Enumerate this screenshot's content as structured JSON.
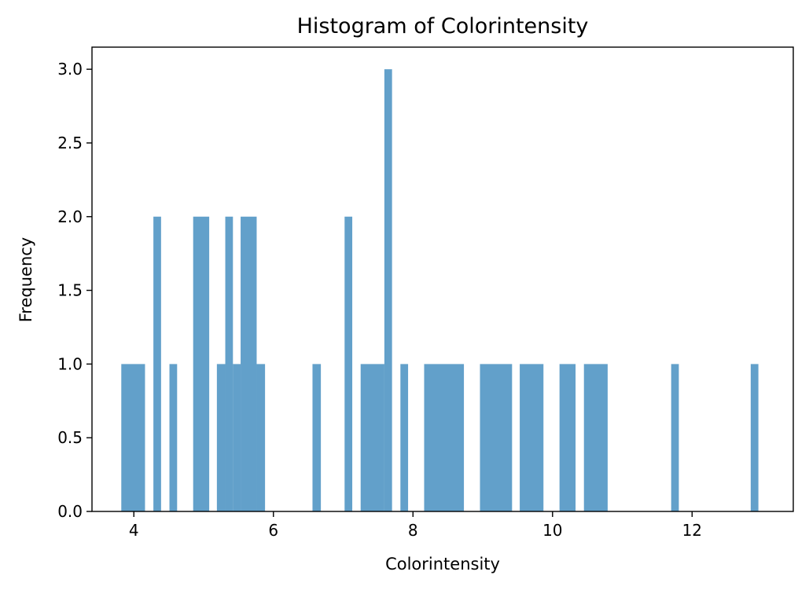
{
  "chart_data": {
    "type": "bar",
    "title": "Histogram of Colorintensity",
    "xlabel": "Colorintensity",
    "ylabel": "Frequency",
    "xlim": [
      3.4,
      13.45
    ],
    "ylim": [
      0,
      3.15
    ],
    "xticks": [
      4,
      6,
      8,
      10,
      12
    ],
    "xtick_labels": [
      "4",
      "6",
      "8",
      "10",
      "12"
    ],
    "yticks": [
      0,
      0.5,
      1,
      1.5,
      2,
      2.5,
      3
    ],
    "ytick_labels": [
      "0.0",
      "0.5",
      "1.0",
      "1.5",
      "2.0",
      "2.5",
      "3.0"
    ],
    "bar_color": "#1f77b4",
    "bar_opacity": 0.7,
    "grid": false,
    "bins": [
      {
        "x0": 3.82,
        "x1": 4.16,
        "count": 1
      },
      {
        "x0": 4.28,
        "x1": 4.39,
        "count": 2
      },
      {
        "x0": 4.51,
        "x1": 4.62,
        "count": 1
      },
      {
        "x0": 4.85,
        "x1": 5.08,
        "count": 2
      },
      {
        "x0": 5.19,
        "x1": 5.31,
        "count": 1
      },
      {
        "x0": 5.31,
        "x1": 5.42,
        "count": 2
      },
      {
        "x0": 5.42,
        "x1": 5.53,
        "count": 1
      },
      {
        "x0": 5.53,
        "x1": 5.76,
        "count": 2
      },
      {
        "x0": 5.76,
        "x1": 5.88,
        "count": 1
      },
      {
        "x0": 6.56,
        "x1": 6.68,
        "count": 1
      },
      {
        "x0": 7.02,
        "x1": 7.13,
        "count": 2
      },
      {
        "x0": 7.25,
        "x1": 7.59,
        "count": 1
      },
      {
        "x0": 7.59,
        "x1": 7.7,
        "count": 3
      },
      {
        "x0": 7.82,
        "x1": 7.93,
        "count": 1
      },
      {
        "x0": 8.16,
        "x1": 8.73,
        "count": 1
      },
      {
        "x0": 8.96,
        "x1": 9.42,
        "count": 1
      },
      {
        "x0": 9.53,
        "x1": 9.87,
        "count": 1
      },
      {
        "x0": 10.1,
        "x1": 10.33,
        "count": 1
      },
      {
        "x0": 10.45,
        "x1": 10.79,
        "count": 1
      },
      {
        "x0": 11.7,
        "x1": 11.81,
        "count": 1
      },
      {
        "x0": 12.84,
        "x1": 12.95,
        "count": 1
      }
    ]
  }
}
